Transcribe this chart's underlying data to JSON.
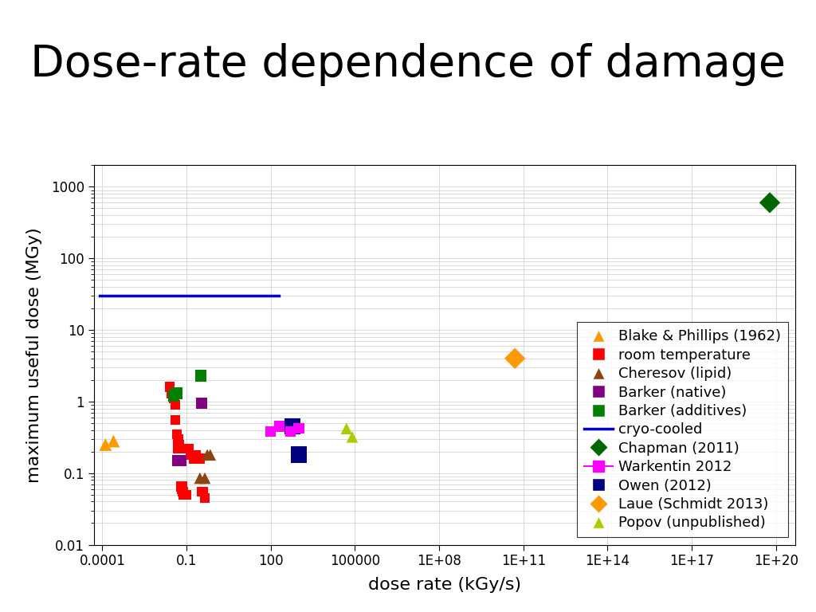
{
  "title": "Dose-rate dependence of damage",
  "xlabel": "dose rate (kGy/s)",
  "ylabel": "maximum useful dose (MGy)",
  "blake_phillips": {
    "x": [
      0.00013,
      0.00025
    ],
    "y": [
      0.25,
      0.28
    ],
    "color": "#FF9900",
    "marker": "^",
    "size": 130,
    "label": "Blake & Phillips (1962)"
  },
  "room_temp": {
    "x": [
      0.025,
      0.03,
      0.035,
      0.04,
      0.04,
      0.045,
      0.05,
      0.05,
      0.055,
      0.06,
      0.065,
      0.07,
      0.07,
      0.075,
      0.08,
      0.09,
      0.1,
      0.1,
      0.12,
      0.14,
      0.18,
      0.2,
      0.22,
      0.25,
      0.3,
      0.35,
      0.4,
      0.45
    ],
    "y": [
      1.6,
      1.3,
      1.1,
      0.9,
      0.55,
      0.35,
      0.3,
      0.22,
      0.25,
      0.22,
      0.065,
      0.065,
      0.06,
      0.055,
      0.05,
      0.22,
      0.22,
      0.05,
      0.22,
      0.18,
      0.16,
      0.18,
      0.18,
      0.16,
      0.16,
      0.055,
      0.055,
      0.045
    ],
    "color": "#FF0000",
    "marker": "s",
    "size": 80,
    "label": "room temperature"
  },
  "cheresov": {
    "x": [
      0.3,
      0.45,
      0.55,
      0.7
    ],
    "y": [
      0.085,
      0.085,
      0.18,
      0.18
    ],
    "color": "#8B4513",
    "marker": "^",
    "size": 110,
    "label": "Cheresov (lipid)"
  },
  "barker_native": {
    "x": [
      0.05,
      0.06,
      0.35
    ],
    "y": [
      0.15,
      0.15,
      0.95
    ],
    "color": "#800080",
    "marker": "s",
    "size": 110,
    "label": "Barker (native)"
  },
  "barker_additives": {
    "x": [
      0.035,
      0.045,
      0.32
    ],
    "y": [
      1.2,
      1.3,
      2.3
    ],
    "color": "#008000",
    "marker": "s",
    "size": 110,
    "label": "Barker (additives)"
  },
  "cryo_cooled": {
    "x": [
      8e-05,
      200
    ],
    "y": [
      30,
      30
    ],
    "color": "#0000CC",
    "linewidth": 2.5,
    "label": "cryo-cooled"
  },
  "chapman": {
    "x": [
      6e+19
    ],
    "y": [
      600
    ],
    "color": "#006600",
    "marker": "D",
    "size": 180,
    "label": "Chapman (2011)"
  },
  "warkentin": {
    "x": [
      100,
      200,
      500,
      1000
    ],
    "y": [
      0.38,
      0.45,
      0.38,
      0.42
    ],
    "color": "#FF00FF",
    "marker": "s",
    "size": 90,
    "label": "Warkentin 2012"
  },
  "owen": {
    "x": [
      600,
      1000
    ],
    "y": [
      0.45,
      0.18
    ],
    "color": "#000080",
    "marker": "s",
    "size": 220,
    "label": "Owen (2012)"
  },
  "laue": {
    "x": [
      50000000000.0
    ],
    "y": [
      4.0
    ],
    "color": "#FF9900",
    "marker": "D",
    "size": 180,
    "label": "Laue (Schmidt 2013)"
  },
  "popov": {
    "x": [
      50000,
      80000
    ],
    "y": [
      0.42,
      0.32
    ],
    "color": "#AACC00",
    "marker": "^",
    "size": 110,
    "label": "Popov (unpublished)"
  },
  "xticks": [
    0.0001,
    0.1,
    100.0,
    100000.0,
    100000000.0,
    100000000000.0,
    100000000000000.0,
    1e+17,
    1e+20
  ],
  "xticklabels": [
    "0.0001",
    "0.1",
    "100",
    "100000",
    "1E+08",
    "1E+11",
    "1E+14",
    "1E+17",
    "1E+20"
  ],
  "yticks": [
    0.01,
    0.1,
    1,
    10,
    100,
    1000
  ],
  "yticklabels": [
    "0.01",
    "0.1",
    "1",
    "10",
    "100",
    "1000"
  ],
  "xlim": [
    5e-05,
    5e+20
  ],
  "ylim": [
    0.01,
    2000
  ],
  "title_fontsize": 40,
  "axis_label_fontsize": 16,
  "tick_fontsize": 12,
  "legend_fontsize": 13,
  "background_color": "#ffffff",
  "grid_color": "#cccccc"
}
